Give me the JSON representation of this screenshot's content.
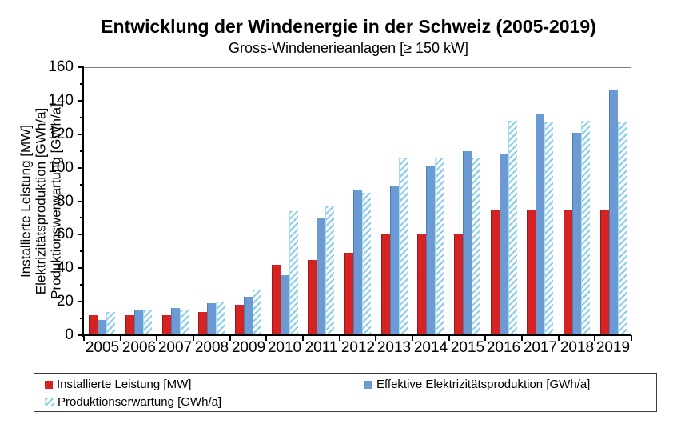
{
  "title": "Entwicklung der Windenergie in der Schweiz (2005-2019)",
  "subtitle": "Gross-Windenerieanlagen [≥ 150 kW]",
  "chart_data": {
    "type": "bar",
    "categories": [
      "2005",
      "2006",
      "2007",
      "2008",
      "2009",
      "2010",
      "2011",
      "2012",
      "2013",
      "2014",
      "2015",
      "2016",
      "2017",
      "2018",
      "2019"
    ],
    "series": [
      {
        "name": "Installierte Leistung [MW]",
        "color": "#d42322",
        "pattern": "solid",
        "values": [
          12,
          12,
          12,
          14,
          18,
          42,
          45,
          49,
          60,
          60,
          60,
          75,
          75,
          75,
          75
        ]
      },
      {
        "name": "Effektive Elektrizitätsproduktion [GWh/a]",
        "color": "#6c9bd3",
        "pattern": "solid",
        "values": [
          9,
          15,
          16,
          19,
          23,
          36,
          70,
          87,
          89,
          101,
          110,
          108,
          132,
          121,
          146
        ]
      },
      {
        "name": "Produktionserwartung [GWh/a]",
        "color": "#8dcfeb",
        "pattern": "hatched-diagonal",
        "values": [
          14,
          15,
          15,
          20,
          27,
          74,
          77,
          85,
          106,
          106,
          106,
          128,
          127,
          128,
          127
        ]
      }
    ],
    "ylabel_lines": [
      "Installierte Leistung [MW]",
      "Elektrizitätsproduktion [GWh/a]",
      "Produktionswerwartung [GWh/a]"
    ],
    "xlabel": "",
    "ylim": [
      0,
      160
    ],
    "ytick_step": 20,
    "ytick_minor_step": 10,
    "yticks": [
      0,
      20,
      40,
      60,
      80,
      100,
      120,
      140,
      160
    ],
    "grid": false,
    "legend_position": "bottom-box",
    "axis_color": "#000000",
    "plot_border_color": "#7f7f7f"
  },
  "legend": {
    "items": [
      {
        "label": "Installierte Leistung [MW]"
      },
      {
        "label": "Effektive Elektrizitätsproduktion [GWh/a]"
      },
      {
        "label": "Produktionserwartung [GWh/a]"
      }
    ]
  }
}
